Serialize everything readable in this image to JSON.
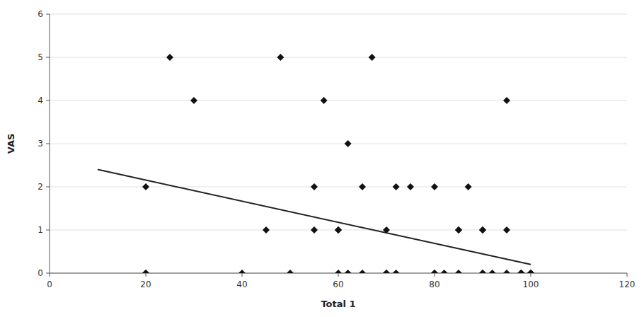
{
  "chart_data": {
    "type": "scatter",
    "xlabel": "Total 1",
    "ylabel": "VAS",
    "series": [
      {
        "type": "scatter",
        "color": "#111111",
        "marker": "diamond",
        "x": [
          20,
          20,
          25,
          30,
          45,
          48,
          55,
          57,
          60,
          60,
          62,
          65,
          65,
          67,
          70,
          70,
          72,
          75,
          80,
          80,
          82,
          85,
          85,
          87,
          90,
          90,
          90,
          92,
          95,
          95,
          98,
          98,
          100,
          100,
          100,
          100,
          20,
          40,
          50,
          55,
          60,
          62,
          70,
          72,
          80,
          85,
          90,
          95,
          98,
          98,
          100,
          100
        ],
        "values": [
          0,
          2,
          5,
          4,
          1,
          5,
          2,
          4,
          1,
          1,
          3,
          0,
          2,
          5,
          0,
          1,
          2,
          2,
          0,
          2,
          0,
          1,
          1,
          2,
          0,
          1,
          1,
          0,
          1,
          4,
          0,
          0,
          0,
          0,
          0,
          0,
          0,
          0,
          0,
          1,
          0,
          0,
          0,
          0,
          0,
          0,
          0,
          0,
          0,
          0,
          0,
          0
        ]
      },
      {
        "type": "line",
        "color": "#222222",
        "line_style": "solid",
        "x": [
          10,
          100
        ],
        "values": [
          2.4,
          0.2
        ]
      }
    ],
    "xlim": [
      0,
      120
    ],
    "ylim": [
      0,
      6
    ],
    "xticks": [
      0,
      20,
      40,
      60,
      80,
      100,
      120
    ],
    "yticks": [
      0,
      1,
      2,
      3,
      4,
      5,
      6
    ],
    "grid": "y"
  }
}
